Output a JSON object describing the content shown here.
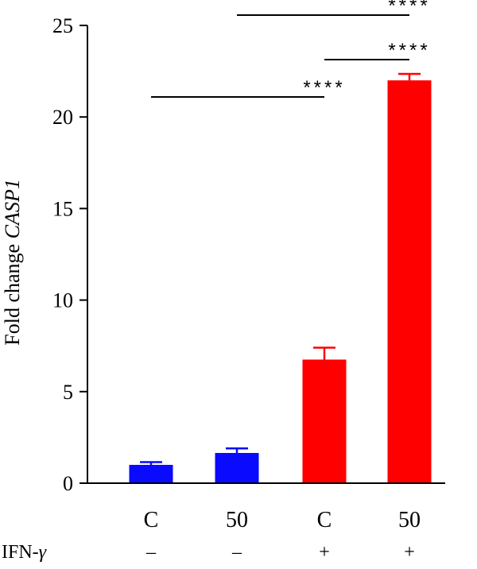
{
  "chart_data": {
    "type": "bar",
    "categories": [
      "C",
      "50",
      "C",
      "50"
    ],
    "values": [
      1.0,
      1.65,
      6.75,
      22.0
    ],
    "errors": [
      0.15,
      0.25,
      0.65,
      0.35
    ],
    "bar_colors": [
      "#0a0aff",
      "#0a0aff",
      "#ff0000",
      "#ff0000"
    ],
    "ylabel_prefix": "Fold change ",
    "ylabel_gene": "CASP1",
    "ylim": [
      0,
      25
    ],
    "yticks": [
      0,
      5,
      10,
      15,
      20,
      25
    ],
    "grid": false,
    "treatment_row": {
      "label": "IFN-",
      "label_symbol": "γ",
      "values": [
        "–",
        "–",
        "+",
        "+"
      ]
    },
    "significance": [
      {
        "from": 0,
        "to": 2,
        "label": "****"
      },
      {
        "from": 2,
        "to": 3,
        "label": "****"
      },
      {
        "from": 1,
        "to": 3,
        "label": "****"
      }
    ]
  }
}
